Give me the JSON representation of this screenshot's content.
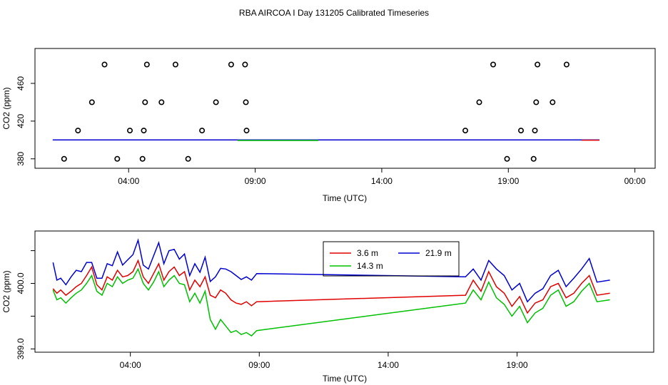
{
  "title": "RBA AIRCOA I  Day 131205  Calibrated Timeseries",
  "colors": {
    "3.6 m": "#e00000",
    "14.3 m": "#00c000",
    "21.9 m": "#0000d0",
    "flask": "#000000"
  },
  "chart_data": [
    {
      "type": "scatter",
      "xlabel": "Time (UTC)",
      "ylabel": "CO2 (ppm)",
      "xlim": [
        0.3,
        24.8
      ],
      "ylim": [
        370,
        497
      ],
      "x_ticks": [
        4,
        9,
        14,
        19,
        24
      ],
      "x_tick_labels": [
        "04:00",
        "09:00",
        "14:00",
        "19:00",
        "00:00"
      ],
      "y_ticks": [
        380,
        420,
        460
      ],
      "y_tick_labels": [
        "380",
        "420",
        "460"
      ],
      "points": [
        {
          "x": 1.45,
          "y": 380
        },
        {
          "x": 2.0,
          "y": 410
        },
        {
          "x": 2.55,
          "y": 440
        },
        {
          "x": 3.05,
          "y": 480
        },
        {
          "x": 3.55,
          "y": 380
        },
        {
          "x": 4.05,
          "y": 410
        },
        {
          "x": 4.55,
          "y": 380
        },
        {
          "x": 4.6,
          "y": 410
        },
        {
          "x": 4.65,
          "y": 440
        },
        {
          "x": 4.72,
          "y": 480
        },
        {
          "x": 5.3,
          "y": 440
        },
        {
          "x": 5.85,
          "y": 480
        },
        {
          "x": 6.35,
          "y": 380
        },
        {
          "x": 6.9,
          "y": 410
        },
        {
          "x": 7.45,
          "y": 440
        },
        {
          "x": 8.05,
          "y": 480
        },
        {
          "x": 8.6,
          "y": 480
        },
        {
          "x": 8.63,
          "y": 440
        },
        {
          "x": 8.66,
          "y": 410
        },
        {
          "x": 17.3,
          "y": 410
        },
        {
          "x": 17.85,
          "y": 440
        },
        {
          "x": 18.4,
          "y": 480
        },
        {
          "x": 18.95,
          "y": 380
        },
        {
          "x": 19.5,
          "y": 410
        },
        {
          "x": 20.0,
          "y": 380
        },
        {
          "x": 20.05,
          "y": 410
        },
        {
          "x": 20.1,
          "y": 440
        },
        {
          "x": 20.15,
          "y": 480
        },
        {
          "x": 20.75,
          "y": 440
        },
        {
          "x": 21.3,
          "y": 480
        }
      ],
      "series": [
        {
          "name": "21.9 m",
          "segments": [
            {
              "x": [
                1.0,
                8.8
              ],
              "y": [
                400.0,
                400.0
              ]
            },
            {
              "x": [
                8.8,
                22.6
              ],
              "y": [
                400.0,
                400.0
              ]
            }
          ]
        },
        {
          "name": "3.6 m",
          "segments": [
            {
              "x": [
                21.9,
                22.6
              ],
              "y": [
                399.8,
                399.8
              ]
            }
          ]
        },
        {
          "name": "14.3 m",
          "segments": [
            {
              "x": [
                8.3,
                11.5
              ],
              "y": [
                399.5,
                399.5
              ]
            }
          ]
        }
      ]
    },
    {
      "type": "line",
      "xlabel": "Time (UTC)",
      "ylabel": "CO2 (ppm)",
      "xlim": [
        0.3,
        24.3
      ],
      "ylim": [
        398.95,
        400.8
      ],
      "x_ticks": [
        4,
        9,
        14,
        19
      ],
      "x_tick_labels": [
        "04:00",
        "09:00",
        "14:00",
        "19:00"
      ],
      "y_ticks": [
        399.0,
        399.5,
        400.0,
        400.5
      ],
      "y_tick_labels": [
        "399.0",
        "",
        "400.0",
        ""
      ],
      "legend": {
        "position": "top-center",
        "entries": [
          "3.6 m",
          "21.9 m",
          "14.3 m"
        ]
      },
      "series": [
        {
          "name": "21.9 m",
          "x": [
            1.0,
            1.15,
            1.3,
            1.5,
            1.7,
            1.9,
            2.1,
            2.3,
            2.5,
            2.7,
            2.9,
            3.1,
            3.3,
            3.5,
            3.7,
            3.9,
            4.1,
            4.3,
            4.5,
            4.7,
            4.9,
            5.1,
            5.3,
            5.5,
            5.7,
            5.9,
            6.1,
            6.3,
            6.5,
            6.7,
            6.9,
            7.1,
            7.3,
            7.5,
            7.7,
            7.9,
            8.1,
            8.3,
            8.5,
            8.7,
            8.9,
            17.0,
            17.3,
            17.6,
            17.9,
            18.2,
            18.5,
            18.8,
            19.1,
            19.4,
            19.7,
            20.0,
            20.3,
            20.6,
            20.9,
            21.2,
            21.5,
            21.8,
            22.1,
            22.6
          ],
          "y": [
            400.32,
            400.05,
            400.08,
            399.98,
            400.1,
            400.2,
            400.18,
            400.32,
            400.32,
            400.08,
            400.08,
            400.3,
            400.27,
            400.48,
            400.28,
            400.36,
            400.44,
            400.66,
            400.28,
            400.22,
            400.42,
            400.62,
            400.3,
            400.5,
            400.52,
            400.37,
            400.45,
            400.12,
            400.3,
            400.17,
            400.4,
            400.03,
            400.1,
            400.23,
            400.22,
            400.18,
            400.12,
            400.06,
            400.1,
            400.05,
            400.15,
            400.1,
            400.22,
            400.05,
            400.35,
            400.22,
            400.12,
            399.9,
            400.0,
            399.72,
            399.85,
            399.92,
            400.12,
            400.2,
            399.95,
            400.08,
            400.22,
            400.38,
            400.02,
            400.05
          ]
        },
        {
          "name": "3.6 m",
          "x": [
            1.0,
            1.15,
            1.3,
            1.5,
            1.7,
            1.9,
            2.1,
            2.3,
            2.5,
            2.7,
            2.9,
            3.1,
            3.3,
            3.5,
            3.7,
            3.9,
            4.1,
            4.3,
            4.5,
            4.7,
            4.9,
            5.1,
            5.3,
            5.5,
            5.7,
            5.9,
            6.1,
            6.3,
            6.5,
            6.7,
            6.9,
            7.1,
            7.3,
            7.5,
            7.7,
            7.9,
            8.1,
            8.3,
            8.5,
            8.7,
            8.9,
            17.0,
            17.3,
            17.6,
            17.9,
            18.2,
            18.5,
            18.8,
            19.1,
            19.4,
            19.7,
            20.0,
            20.3,
            20.6,
            20.9,
            21.2,
            21.5,
            21.8,
            22.1,
            22.6
          ],
          "y": [
            399.92,
            399.85,
            399.9,
            399.82,
            399.88,
            399.95,
            400.0,
            400.12,
            400.25,
            399.98,
            399.9,
            400.1,
            400.05,
            400.2,
            400.1,
            400.12,
            400.18,
            400.35,
            400.1,
            400.0,
            400.15,
            400.3,
            400.05,
            400.18,
            400.25,
            400.12,
            400.18,
            399.9,
            400.05,
            399.95,
            400.1,
            399.82,
            399.78,
            399.9,
            399.85,
            399.75,
            399.7,
            399.68,
            399.72,
            399.66,
            399.72,
            399.82,
            400.05,
            399.88,
            400.18,
            399.95,
            399.85,
            399.65,
            399.8,
            399.55,
            399.7,
            399.75,
            399.95,
            400.0,
            399.78,
            399.85,
            400.0,
            400.12,
            399.82,
            399.85
          ]
        },
        {
          "name": "14.3 m",
          "x": [
            1.0,
            1.15,
            1.3,
            1.5,
            1.7,
            1.9,
            2.1,
            2.3,
            2.5,
            2.7,
            2.9,
            3.1,
            3.3,
            3.5,
            3.7,
            3.9,
            4.1,
            4.3,
            4.5,
            4.7,
            4.9,
            5.1,
            5.3,
            5.5,
            5.7,
            5.9,
            6.1,
            6.3,
            6.5,
            6.7,
            6.9,
            7.1,
            7.3,
            7.5,
            7.7,
            7.9,
            8.1,
            8.3,
            8.5,
            8.7,
            8.9,
            17.0,
            17.3,
            17.6,
            17.9,
            18.2,
            18.5,
            18.8,
            19.1,
            19.4,
            19.7,
            20.0,
            20.3,
            20.6,
            20.9,
            21.2,
            21.5,
            21.8,
            22.1,
            22.6
          ],
          "y": [
            399.9,
            399.75,
            399.78,
            399.7,
            399.78,
            399.85,
            399.9,
            400.0,
            400.12,
            399.88,
            399.82,
            400.0,
            399.95,
            400.1,
            400.0,
            400.05,
            400.08,
            400.22,
            400.0,
            399.9,
            400.02,
            400.18,
            399.95,
            400.05,
            400.12,
            400.0,
            399.98,
            399.72,
            399.85,
            399.7,
            399.88,
            399.45,
            399.3,
            399.45,
            399.35,
            399.25,
            399.28,
            399.22,
            399.25,
            399.2,
            399.28,
            399.7,
            399.9,
            399.75,
            400.02,
            399.78,
            399.68,
            399.5,
            399.65,
            399.4,
            399.55,
            399.62,
            399.82,
            399.9,
            399.65,
            399.72,
            399.88,
            400.0,
            399.72,
            399.75
          ]
        }
      ]
    }
  ]
}
